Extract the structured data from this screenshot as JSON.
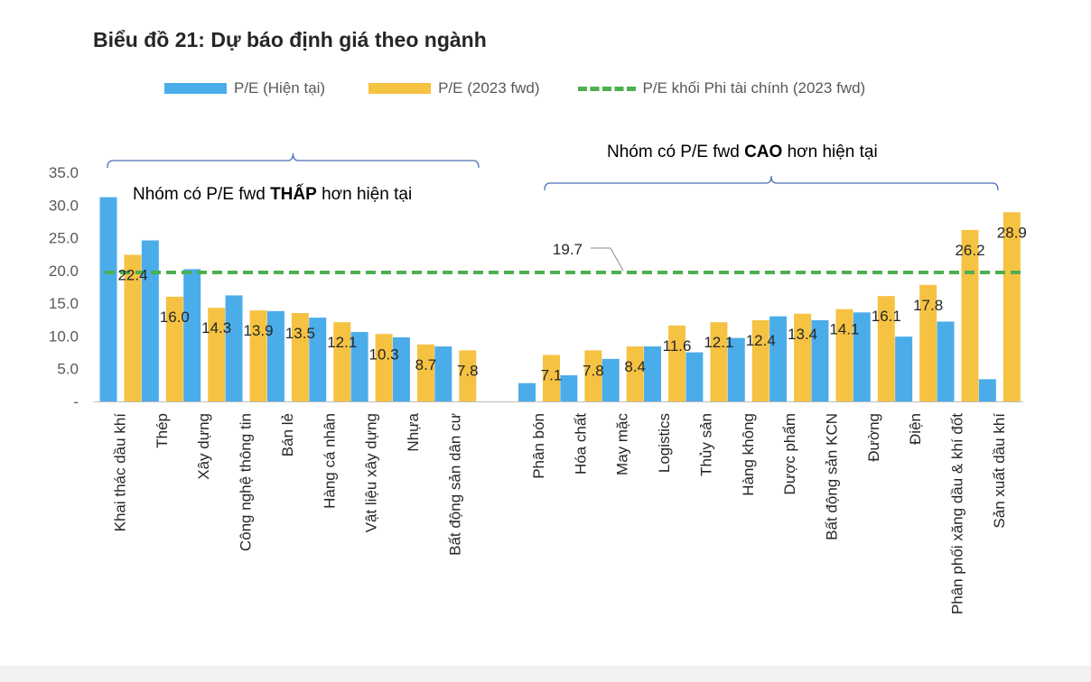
{
  "chart_data": {
    "type": "bar",
    "title": "Biểu đồ 21: Dự báo định giá theo ngành",
    "categories": [
      "Khai thác dầu khí",
      "Thép",
      "Xây dựng",
      "Công nghệ thông tin",
      "Bán lẻ",
      "Hàng cá nhân",
      "Vật liệu xây dựng",
      "Nhựa",
      "Bất động sản dân cư",
      "Phân bón",
      "Hóa chất",
      "May mặc",
      "Logistics",
      "Thủy sản",
      "Hàng không",
      "Dược phẩm",
      "Bất động sản KCN",
      "Đường",
      "Điện",
      "Phân phối xăng dầu & khí đốt",
      "Sản xuất dầu khí"
    ],
    "series": [
      {
        "name": "P/E (Hiện tại)",
        "color": "#4BACEA",
        "values": [
          31.2,
          24.6,
          20.2,
          16.2,
          13.8,
          12.8,
          10.6,
          9.8,
          8.4,
          2.8,
          4.0,
          6.5,
          8.4,
          7.5,
          9.7,
          13.0,
          12.4,
          13.6,
          9.9,
          12.2,
          3.4
        ],
        "labels": [
          "",
          "",
          "",
          "",
          "",
          "",
          "",
          "",
          "",
          "",
          "",
          "",
          "",
          "",
          "",
          "",
          "",
          "",
          "",
          "",
          ""
        ]
      },
      {
        "name": "P/E (2023 fwd)",
        "color": "#F5C242",
        "values": [
          22.4,
          16.0,
          14.3,
          13.9,
          13.5,
          12.1,
          10.3,
          8.7,
          7.8,
          7.1,
          7.8,
          8.4,
          11.6,
          12.1,
          12.4,
          13.4,
          14.1,
          16.1,
          17.8,
          26.2,
          28.9
        ],
        "labels": [
          "22.4",
          "16.0",
          "14.3",
          "13.9",
          "13.5",
          "12.1",
          "10.3",
          "8.7",
          "7.8",
          "7.1",
          "7.8",
          "8.4",
          "11.6",
          "12.1",
          "12.4",
          "13.4",
          "14.1",
          "16.1",
          "17.8",
          "26.2",
          "28.9"
        ]
      }
    ],
    "reference_line": {
      "name": "P/E khối Phi tài chính (2023 fwd)",
      "value": 19.7,
      "label": "19.7",
      "color": "#4CAF50"
    },
    "yticks": [
      "-",
      "5.0",
      "10.0",
      "15.0",
      "20.0",
      "25.0",
      "30.0",
      "35.0"
    ],
    "ylim": [
      0,
      35
    ],
    "groups": [
      {
        "text_before": "Nhóm có P/E fwd ",
        "text_bold": "THẤP",
        "text_after": " hơn hiện tại",
        "from": 0,
        "to": 8
      },
      {
        "text_before": "Nhóm có P/E fwd ",
        "text_bold": "CAO",
        "text_after": " hơn hiện tại",
        "from": 9,
        "to": 20
      }
    ],
    "legend_position": "top"
  }
}
